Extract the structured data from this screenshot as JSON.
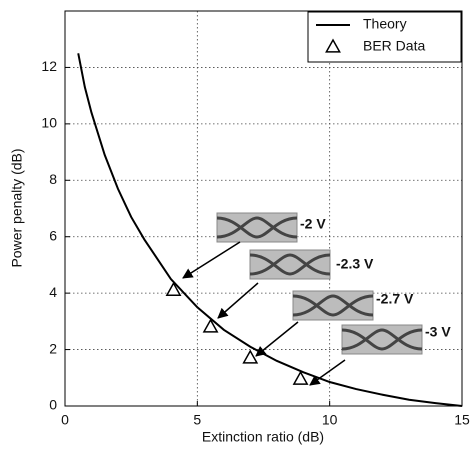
{
  "chart_data": {
    "type": "line",
    "x_label": "Extinction ratio (dB)",
    "y_label": "Power penalty (dB)",
    "xlim": [
      0,
      15
    ],
    "xticks": [
      0,
      5,
      10,
      15
    ],
    "ylim": [
      0,
      14
    ],
    "yticks": [
      0,
      2,
      4,
      6,
      8,
      10,
      12
    ],
    "grid": true,
    "legend": "upper right",
    "series": [
      {
        "name": "Theory",
        "color": "#000000",
        "style": "line",
        "x": [
          0.5,
          0.75,
          1,
          1.5,
          2,
          2.5,
          3,
          4,
          5,
          6,
          7,
          8,
          9,
          10,
          11,
          12,
          13,
          14,
          15
        ],
        "values": [
          12.5,
          11.3,
          10.4,
          8.9,
          7.7,
          6.7,
          5.9,
          4.5,
          3.5,
          2.7,
          2.1,
          1.6,
          1.2,
          0.85,
          0.6,
          0.4,
          0.22,
          0.1,
          0
        ]
      },
      {
        "name": "BER Data",
        "color": "#000000",
        "style": "marker",
        "x": [
          4.1,
          5.5,
          7.0,
          8.9
        ],
        "values": [
          4.1,
          2.8,
          1.7,
          0.95
        ]
      }
    ],
    "annotations": [
      "-2 V",
      "-2.3 V",
      "-2.7 V",
      "-3 V"
    ]
  }
}
